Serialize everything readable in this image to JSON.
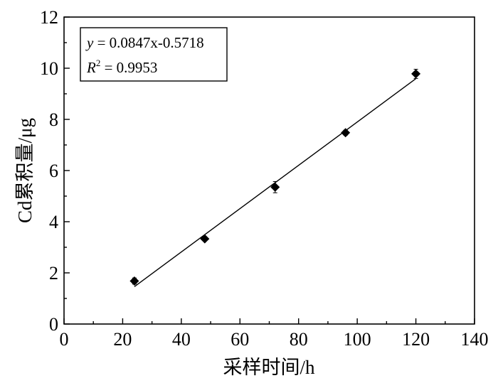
{
  "chart_data": {
    "type": "scatter",
    "title": "",
    "xlabel": "采样时间/h",
    "ylabel": "Cd累积量/μg",
    "xlim": [
      0,
      140
    ],
    "ylim": [
      0,
      12
    ],
    "xticks": [
      0,
      20,
      40,
      60,
      80,
      100,
      120,
      140
    ],
    "yticks": [
      0,
      2,
      4,
      6,
      8,
      10,
      12
    ],
    "grid": false,
    "series": [
      {
        "x": [
          24,
          48,
          72,
          96,
          120
        ],
        "y": [
          1.68,
          3.33,
          5.35,
          7.48,
          9.78
        ],
        "yerr": [
          0.12,
          0.08,
          0.22,
          0.1,
          0.18
        ],
        "marker": "diamond",
        "color": "#000000"
      }
    ],
    "fit": {
      "slope": 0.0847,
      "intercept": -0.5718,
      "x_range": [
        24,
        120
      ],
      "equation_y": "y",
      "equation_rhs": " = 0.0847x-0.5718",
      "r2_r": "R",
      "r2_sup": "2",
      "r2_rhs": " = 0.9953"
    },
    "legend_position": "top-left"
  }
}
